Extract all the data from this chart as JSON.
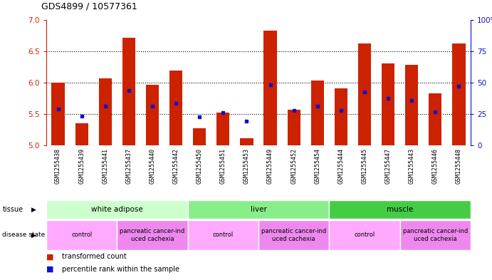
{
  "title": "GDS4899 / 10577361",
  "samples": [
    "GSM1255438",
    "GSM1255439",
    "GSM1255441",
    "GSM1255437",
    "GSM1255440",
    "GSM1255442",
    "GSM1255450",
    "GSM1255451",
    "GSM1255453",
    "GSM1255449",
    "GSM1255452",
    "GSM1255454",
    "GSM1255444",
    "GSM1255445",
    "GSM1255447",
    "GSM1255443",
    "GSM1255446",
    "GSM1255448"
  ],
  "bar_heights": [
    6.0,
    5.35,
    6.07,
    6.72,
    5.97,
    6.19,
    5.27,
    5.52,
    5.11,
    6.83,
    5.57,
    6.03,
    5.91,
    6.63,
    6.31,
    6.28,
    5.83,
    6.63
  ],
  "blue_dots": [
    5.58,
    5.47,
    5.63,
    5.87,
    5.62,
    5.67,
    5.46,
    5.52,
    5.39,
    5.97,
    5.56,
    5.63,
    5.56,
    5.85,
    5.75,
    5.72,
    5.53,
    5.94
  ],
  "ylim": [
    5.0,
    7.0
  ],
  "yticks_left": [
    5.0,
    5.5,
    6.0,
    6.5,
    7.0
  ],
  "yticks_right": [
    0,
    25,
    50,
    75,
    100
  ],
  "bar_color": "#cc2200",
  "dot_color": "#1111cc",
  "plot_bg": "#ffffff",
  "xtick_bg": "#d0d0d0",
  "tissue_colors": [
    "#ccffcc",
    "#88ee88",
    "#44cc44"
  ],
  "disease_colors": [
    "#ffaaff",
    "#ee88ee"
  ],
  "tissue_groups": [
    {
      "label": "white adipose",
      "start": 0,
      "end": 6
    },
    {
      "label": "liver",
      "start": 6,
      "end": 12
    },
    {
      "label": "muscle",
      "start": 12,
      "end": 18
    }
  ],
  "disease_groups": [
    {
      "label": "control",
      "start": 0,
      "end": 3
    },
    {
      "label": "pancreatic cancer-ind\nuced cachexia",
      "start": 3,
      "end": 6
    },
    {
      "label": "control",
      "start": 6,
      "end": 9
    },
    {
      "label": "pancreatic cancer-ind\nuced cachexia",
      "start": 9,
      "end": 12
    },
    {
      "label": "control",
      "start": 12,
      "end": 15
    },
    {
      "label": "pancreatic cancer-ind\nuced cachexia",
      "start": 15,
      "end": 18
    }
  ]
}
